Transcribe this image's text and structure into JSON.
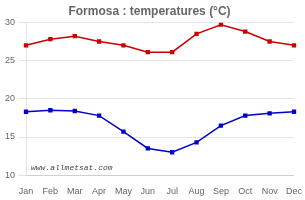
{
  "chart_data": {
    "type": "line",
    "title": "Formosa : temperatures (°C)",
    "categories": [
      "Jan",
      "Feb",
      "Mar",
      "Apr",
      "May",
      "Jun",
      "Jul",
      "Aug",
      "Sep",
      "Oct",
      "Nov",
      "Dec"
    ],
    "series": [
      {
        "color": "#cc0000",
        "marker": "square",
        "values": [
          27.0,
          27.8,
          28.2,
          27.5,
          27.0,
          26.1,
          26.1,
          28.5,
          29.7,
          28.8,
          27.5,
          27.0
        ]
      },
      {
        "color": "#0000cc",
        "marker": "square",
        "values": [
          18.3,
          18.5,
          18.4,
          17.8,
          15.7,
          13.5,
          13.0,
          14.3,
          16.5,
          17.8,
          18.1,
          18.3
        ]
      }
    ],
    "ylim": [
      10,
      30
    ],
    "yticks": [
      10,
      15,
      20,
      25,
      30
    ],
    "grid": true,
    "annotations": [
      {
        "text": "www.allmetsat.com"
      }
    ]
  }
}
